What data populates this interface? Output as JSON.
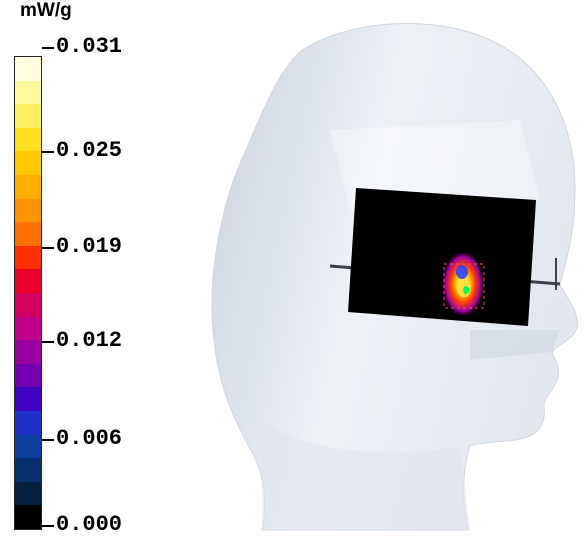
{
  "legend": {
    "unit": "mW/g",
    "ticks": [
      "0.031",
      "0.025",
      "0.019",
      "0.012",
      "0.006",
      "0.000"
    ],
    "colors": [
      "#ffffe0",
      "#fff8a0",
      "#ffee60",
      "#ffde20",
      "#ffc800",
      "#ffae00",
      "#ff9400",
      "#ff7000",
      "#ff3000",
      "#e8002a",
      "#d40060",
      "#c0008a",
      "#9800a0",
      "#7000b0",
      "#4000c0",
      "#2030c8",
      "#1040a0",
      "#0a3070",
      "#062040",
      "#000000"
    ]
  }
}
